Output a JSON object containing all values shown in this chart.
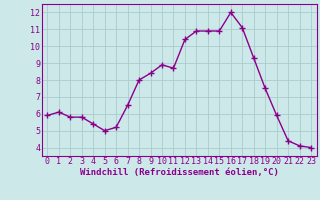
{
  "x": [
    0,
    1,
    2,
    3,
    4,
    5,
    6,
    7,
    8,
    9,
    10,
    11,
    12,
    13,
    14,
    15,
    16,
    17,
    18,
    19,
    20,
    21,
    22,
    23
  ],
  "y": [
    5.9,
    6.1,
    5.8,
    5.8,
    5.4,
    5.0,
    5.2,
    6.5,
    8.0,
    8.4,
    8.9,
    8.7,
    10.4,
    10.9,
    10.9,
    10.9,
    12.0,
    11.1,
    9.3,
    7.5,
    5.9,
    4.4,
    4.1,
    4.0
  ],
  "line_color": "#8b008b",
  "marker": "+",
  "marker_size": 4,
  "bg_color": "#cce8e8",
  "grid_color": "#aacccc",
  "xlabel": "Windchill (Refroidissement éolien,°C)",
  "xlabel_color": "#8b008b",
  "tick_color": "#8b008b",
  "axis_color": "#8b008b",
  "ylim": [
    3.5,
    12.5
  ],
  "xlim": [
    -0.5,
    23.5
  ],
  "yticks": [
    4,
    5,
    6,
    7,
    8,
    9,
    10,
    11,
    12
  ],
  "xticks": [
    0,
    1,
    2,
    3,
    4,
    5,
    6,
    7,
    8,
    9,
    10,
    11,
    12,
    13,
    14,
    15,
    16,
    17,
    18,
    19,
    20,
    21,
    22,
    23
  ],
  "line_width": 1.0,
  "tick_fontsize": 6.0,
  "xlabel_fontsize": 6.5
}
